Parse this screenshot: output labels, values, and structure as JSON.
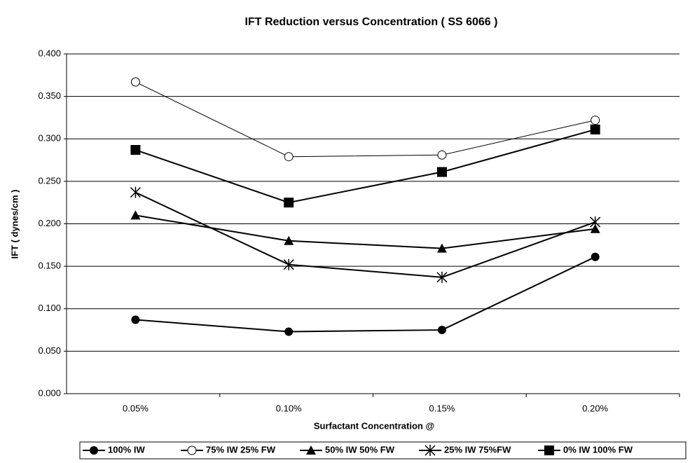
{
  "chart_data": {
    "type": "line",
    "title": "IFT Reduction versus Concentration ( SS 6066 )",
    "x_label": "Surfactant Concentration @",
    "y_label": "IFT ( dynes/cm )",
    "categories": [
      "0.05%",
      "0.10%",
      "0.15%",
      "0.20%"
    ],
    "series": [
      {
        "name": "100% IW",
        "color": "#000000",
        "marker": "circle",
        "values": [
          0.087,
          0.073,
          0.075,
          0.161
        ]
      },
      {
        "name": "75% IW 25% FW",
        "color": "#000000",
        "marker": "open-circle",
        "values": [
          0.367,
          0.279,
          0.281,
          0.322
        ]
      },
      {
        "name": "50% IW 50% FW",
        "color": "#000000",
        "marker": "triangle",
        "values": [
          0.21,
          0.18,
          0.171,
          0.194
        ]
      },
      {
        "name": "25% IW 75%FW",
        "color": "#000000",
        "marker": "asterisk",
        "values": [
          0.237,
          0.152,
          0.137,
          0.202
        ]
      },
      {
        "name": "0% IW 100% FW",
        "color": "#000000",
        "marker": "square",
        "values": [
          0.287,
          0.225,
          0.261,
          0.311
        ]
      }
    ],
    "ylim": [
      0,
      0.4
    ],
    "yticks": [
      {
        "value": 0,
        "label": "0.000"
      },
      {
        "value": 0.05,
        "label": "0.050"
      },
      {
        "value": 0.1,
        "label": "0.100"
      },
      {
        "value": 0.15,
        "label": "0.150"
      },
      {
        "value": 0.2,
        "label": "0.200"
      },
      {
        "value": 0.25,
        "label": "0.250"
      },
      {
        "value": 0.3,
        "label": "0.300"
      },
      {
        "value": 0.35,
        "label": "0.350"
      },
      {
        "value": 0.4,
        "label": "0.400"
      }
    ],
    "grid": true,
    "legend": "bottom"
  }
}
